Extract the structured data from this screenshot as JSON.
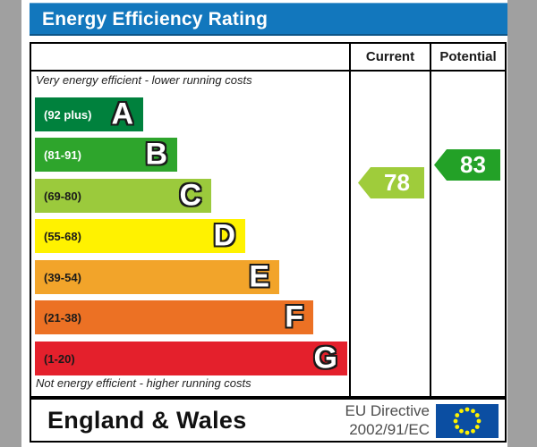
{
  "ui": {
    "title": "Energy Efficiency Rating",
    "columns": {
      "current": "Current",
      "potential": "Potential"
    },
    "captions": {
      "top": "Very energy efficient - lower running costs",
      "bottom": "Not energy efficient - higher running costs"
    },
    "footer": {
      "region": "England & Wales",
      "directive_line1": "EU Directive",
      "directive_line2": "2002/91/EC"
    },
    "colors": {
      "title_bar": "#1277BD",
      "page_margin": "#A0A0A0",
      "border": "#000000",
      "eu_flag_blue": "#0B4EA2",
      "eu_flag_star": "#FFF200",
      "directive_text": "#4D4D4D"
    }
  },
  "chart_data": {
    "type": "bar",
    "title": "Energy Efficiency Rating",
    "categories": [
      "A",
      "B",
      "C",
      "D",
      "E",
      "F",
      "G"
    ],
    "bands": [
      {
        "letter": "A",
        "range": "(92 plus)",
        "min": 92,
        "max": 100,
        "color": "#00813D",
        "label_color": "#FFFFFF"
      },
      {
        "letter": "B",
        "range": "(81-91)",
        "min": 81,
        "max": 91,
        "color": "#2EA52C",
        "label_color": "#FFFFFF"
      },
      {
        "letter": "C",
        "range": "(69-80)",
        "min": 69,
        "max": 80,
        "color": "#9BCA3C",
        "label_color": "#1A1A1A"
      },
      {
        "letter": "D",
        "range": "(55-68)",
        "min": 55,
        "max": 68,
        "color": "#FFF200",
        "label_color": "#1A1A1A"
      },
      {
        "letter": "E",
        "range": "(39-54)",
        "min": 39,
        "max": 54,
        "color": "#F2A42A",
        "label_color": "#1A1A1A"
      },
      {
        "letter": "F",
        "range": "(21-38)",
        "min": 21,
        "max": 38,
        "color": "#EC7124",
        "label_color": "#1A1A1A"
      },
      {
        "letter": "G",
        "range": "(1-20)",
        "min": 1,
        "max": 20,
        "color": "#E4202C",
        "label_color": "#1A1A1A"
      }
    ],
    "current": {
      "label": "Current",
      "value": 78,
      "band": "C",
      "color": "#9FCC3B"
    },
    "potential": {
      "label": "Potential",
      "value": 83,
      "band": "B",
      "color": "#23A127"
    }
  }
}
